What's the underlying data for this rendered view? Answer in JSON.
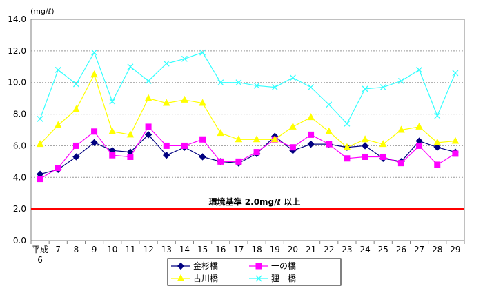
{
  "chart_data": {
    "type": "line",
    "unit_label": "(mg/ℓ)",
    "categories": [
      "平成\n6",
      "7",
      "8",
      "9",
      "10",
      "11",
      "12",
      "13",
      "14",
      "15",
      "16",
      "17",
      "18",
      "19",
      "20",
      "21",
      "22",
      "23",
      "24",
      "25",
      "26",
      "27",
      "28",
      "29"
    ],
    "ylim": [
      0,
      14
    ],
    "yticks": [
      "0.0",
      "2.0",
      "4.0",
      "6.0",
      "8.0",
      "10.0",
      "12.0",
      "14.0"
    ],
    "grid": true,
    "legend_position": "bottom",
    "series": [
      {
        "name": "金杉橋",
        "color": "#000080",
        "marker": "diamond",
        "values": [
          4.2,
          4.5,
          5.3,
          6.2,
          5.7,
          5.6,
          6.7,
          5.4,
          5.9,
          5.3,
          5.0,
          4.9,
          5.5,
          6.6,
          5.7,
          6.1,
          6.1,
          5.9,
          6.0,
          5.2,
          5.0,
          6.3,
          5.9,
          5.6
        ]
      },
      {
        "name": "一の橋",
        "color": "#ff00ff",
        "marker": "square",
        "values": [
          3.9,
          4.6,
          6.0,
          6.9,
          5.4,
          5.3,
          7.2,
          6.0,
          6.0,
          6.4,
          5.0,
          5.0,
          5.6,
          6.4,
          5.9,
          6.7,
          6.1,
          5.2,
          5.3,
          5.3,
          4.9,
          6.0,
          4.8,
          5.5
        ]
      },
      {
        "name": "古川橋",
        "color": "#ffff00",
        "marker": "triangle",
        "values": [
          6.1,
          7.3,
          8.3,
          10.5,
          6.9,
          6.7,
          9.0,
          8.7,
          8.9,
          8.7,
          6.8,
          6.4,
          6.4,
          6.4,
          7.2,
          7.8,
          6.9,
          5.9,
          6.4,
          6.1,
          7.0,
          7.2,
          6.2,
          6.3
        ]
      },
      {
        "name": "狸　橋",
        "color": "#33ffff",
        "marker": "x",
        "values": [
          7.7,
          10.8,
          9.9,
          11.9,
          8.8,
          11.0,
          10.1,
          11.2,
          11.5,
          11.9,
          10.0,
          10.0,
          9.8,
          9.7,
          10.3,
          9.7,
          8.6,
          7.4,
          9.6,
          9.7,
          10.1,
          10.8,
          7.9,
          10.6
        ]
      }
    ],
    "reference_line": {
      "value": 2.0,
      "label": "環境基準 2.0mg/ℓ 以上",
      "color": "#ff0000"
    }
  }
}
